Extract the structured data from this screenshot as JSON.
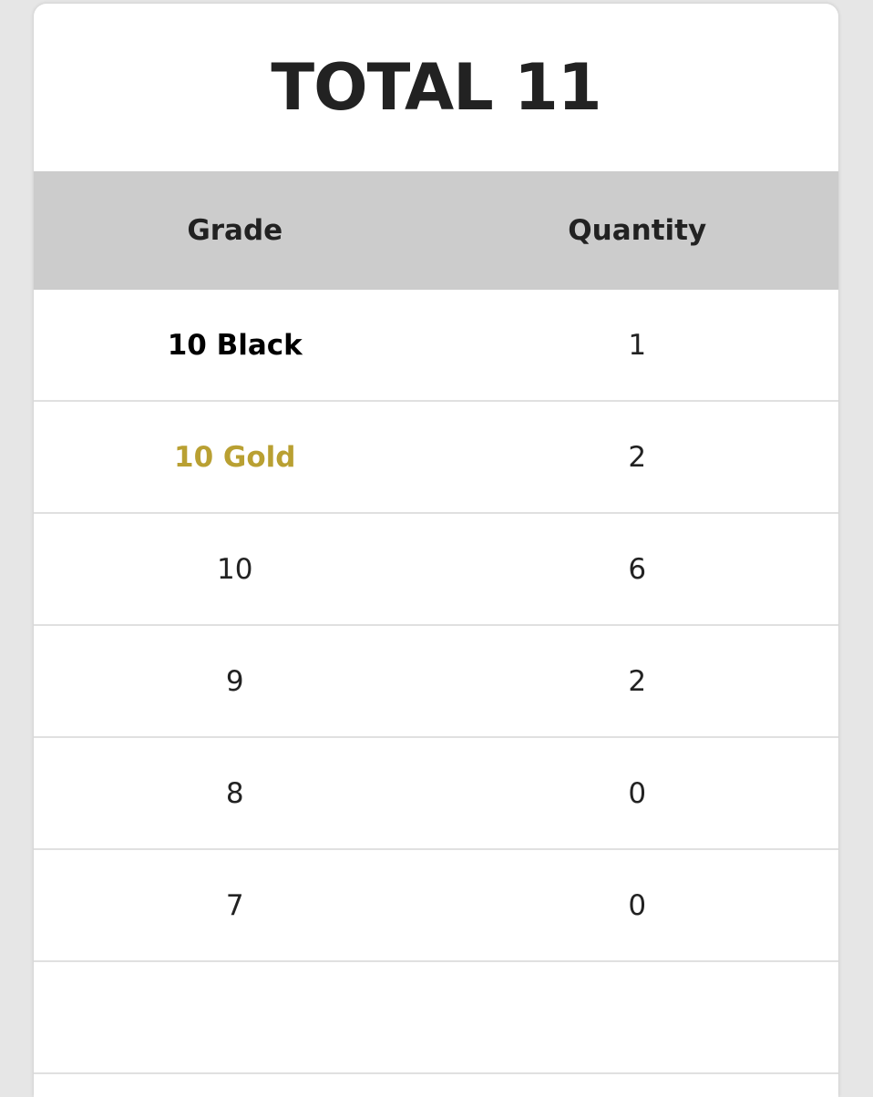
{
  "title": "TOTAL 11",
  "columns": [
    "Grade",
    "Quantity"
  ],
  "colors": {
    "gold": "#b9a032",
    "header_bg": "#cccccc"
  },
  "rows": [
    {
      "grade": "10 Black",
      "quantity": "1",
      "style": "black"
    },
    {
      "grade": "10 Gold",
      "quantity": "2",
      "style": "gold"
    },
    {
      "grade": "10",
      "quantity": "6",
      "style": ""
    },
    {
      "grade": "9",
      "quantity": "2",
      "style": ""
    },
    {
      "grade": "8",
      "quantity": "0",
      "style": ""
    },
    {
      "grade": "7",
      "quantity": "0",
      "style": ""
    }
  ]
}
